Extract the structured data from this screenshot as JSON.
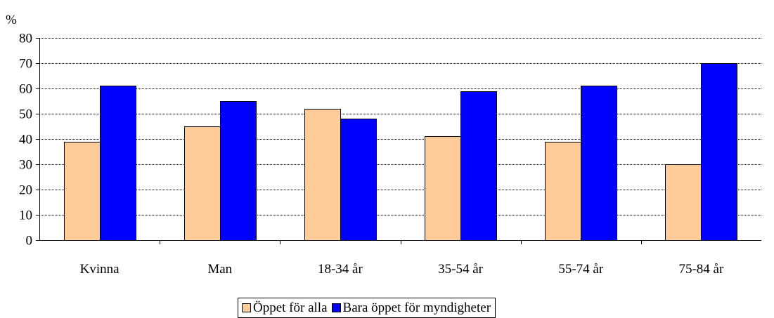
{
  "chart_data": {
    "type": "bar",
    "unit_label": "%",
    "categories": [
      "Kvinna",
      "Man",
      "18-34 år",
      "35-54 år",
      "55-74 år",
      "75-84 år"
    ],
    "series": [
      {
        "name": "Öppet för alla",
        "values": [
          39,
          45,
          52,
          41,
          39,
          30
        ],
        "color": "#ffcc99"
      },
      {
        "name": "Bara öppet för myndigheter",
        "values": [
          61,
          55,
          48,
          59,
          61,
          70
        ],
        "color": "#0000ff"
      }
    ],
    "ylim": [
      0,
      80
    ],
    "yticks": [
      0,
      10,
      20,
      30,
      40,
      50,
      60,
      70,
      80
    ],
    "grid": true,
    "legend_position": "bottom"
  }
}
